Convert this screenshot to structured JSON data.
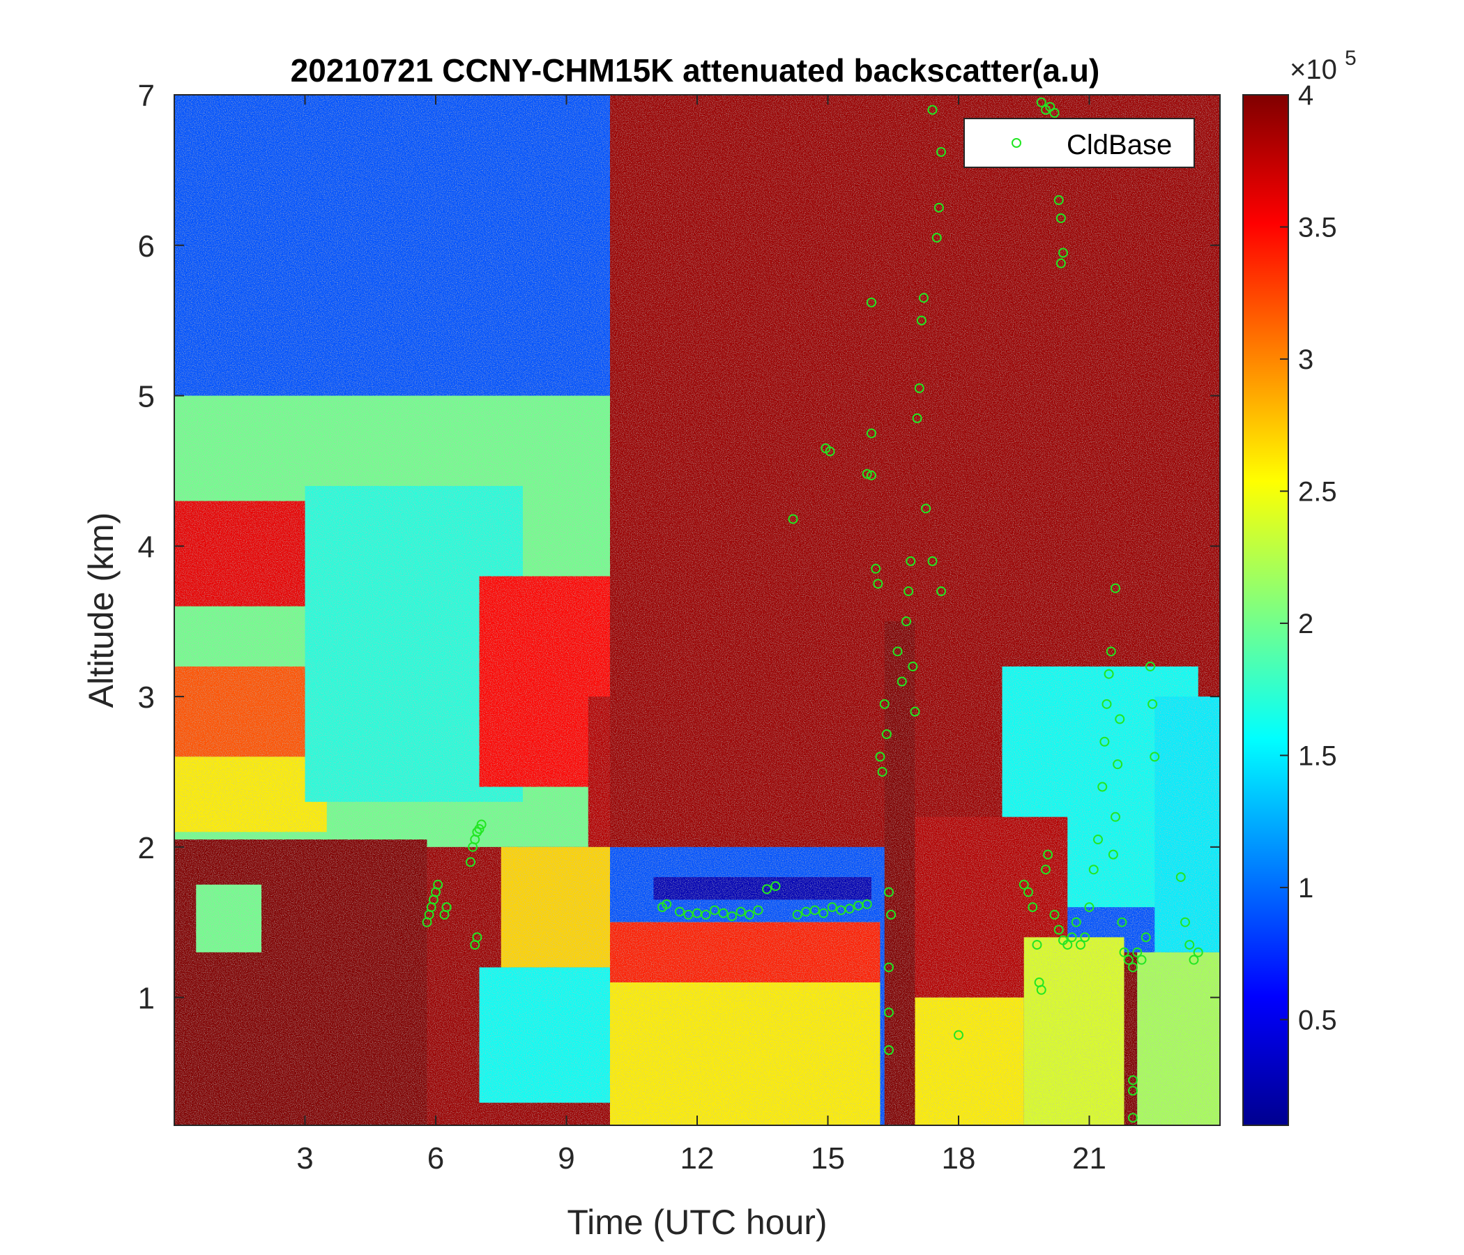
{
  "chart_data": {
    "type": "heatmap",
    "title": "20210721 CCNY-CHM15K attenuated backscatter(a.u)",
    "xlabel": "Time (UTC hour)",
    "ylabel": "Altitude (km)",
    "xlim": [
      0,
      24
    ],
    "ylim": [
      0.15,
      7
    ],
    "xticks": [
      3,
      6,
      9,
      12,
      15,
      18,
      21
    ],
    "yticks": [
      1,
      2,
      3,
      4,
      5,
      6,
      7
    ],
    "colorbar": {
      "colormap": "jet",
      "clim": [
        0.1,
        4
      ],
      "ticks": [
        0.5,
        1,
        1.5,
        2,
        2.5,
        3,
        3.5,
        4
      ],
      "multiplier_base": "×10",
      "multiplier_exponent": "5"
    },
    "legend": {
      "location": "top-right",
      "entries": [
        "CldBase"
      ]
    },
    "series": [
      {
        "name": "CldBase",
        "marker": "open-circle",
        "color": "#22e622",
        "points": [
          [
            5.8,
            1.5
          ],
          [
            5.85,
            1.55
          ],
          [
            5.9,
            1.6
          ],
          [
            5.95,
            1.65
          ],
          [
            6.0,
            1.7
          ],
          [
            6.05,
            1.75
          ],
          [
            6.2,
            1.55
          ],
          [
            6.25,
            1.6
          ],
          [
            6.8,
            1.9
          ],
          [
            6.85,
            2.0
          ],
          [
            6.9,
            2.05
          ],
          [
            6.95,
            2.1
          ],
          [
            7.0,
            2.12
          ],
          [
            7.05,
            2.15
          ],
          [
            6.9,
            1.35
          ],
          [
            6.95,
            1.4
          ],
          [
            11.2,
            1.6
          ],
          [
            11.3,
            1.62
          ],
          [
            11.6,
            1.57
          ],
          [
            11.8,
            1.55
          ],
          [
            12.0,
            1.56
          ],
          [
            12.2,
            1.55
          ],
          [
            12.4,
            1.58
          ],
          [
            12.6,
            1.56
          ],
          [
            12.8,
            1.54
          ],
          [
            13.0,
            1.57
          ],
          [
            13.2,
            1.55
          ],
          [
            13.4,
            1.58
          ],
          [
            13.6,
            1.72
          ],
          [
            13.8,
            1.74
          ],
          [
            14.3,
            1.55
          ],
          [
            14.5,
            1.57
          ],
          [
            14.7,
            1.58
          ],
          [
            14.9,
            1.56
          ],
          [
            15.1,
            1.6
          ],
          [
            15.3,
            1.58
          ],
          [
            15.5,
            1.59
          ],
          [
            15.7,
            1.61
          ],
          [
            15.9,
            1.62
          ],
          [
            14.2,
            4.18
          ],
          [
            14.95,
            4.65
          ],
          [
            15.05,
            4.63
          ],
          [
            15.9,
            4.48
          ],
          [
            16.0,
            4.47
          ],
          [
            16.0,
            4.75
          ],
          [
            16.0,
            5.62
          ],
          [
            16.1,
            3.85
          ],
          [
            16.15,
            3.75
          ],
          [
            16.2,
            2.6
          ],
          [
            16.25,
            2.5
          ],
          [
            16.3,
            2.95
          ],
          [
            16.35,
            2.75
          ],
          [
            16.4,
            1.7
          ],
          [
            16.45,
            1.55
          ],
          [
            16.4,
            1.2
          ],
          [
            16.4,
            0.9
          ],
          [
            16.4,
            0.65
          ],
          [
            16.6,
            3.3
          ],
          [
            16.7,
            3.1
          ],
          [
            16.8,
            3.5
          ],
          [
            16.85,
            3.7
          ],
          [
            16.9,
            3.9
          ],
          [
            16.95,
            3.2
          ],
          [
            17.0,
            2.9
          ],
          [
            17.05,
            4.85
          ],
          [
            17.1,
            5.05
          ],
          [
            17.15,
            5.5
          ],
          [
            17.2,
            5.65
          ],
          [
            17.25,
            4.25
          ],
          [
            17.4,
            3.9
          ],
          [
            17.4,
            6.9
          ],
          [
            17.5,
            6.05
          ],
          [
            17.55,
            6.25
          ],
          [
            17.6,
            6.62
          ],
          [
            17.6,
            3.7
          ],
          [
            18.0,
            0.75
          ],
          [
            19.5,
            1.75
          ],
          [
            19.6,
            1.7
          ],
          [
            19.7,
            1.6
          ],
          [
            19.8,
            1.35
          ],
          [
            19.85,
            1.1
          ],
          [
            19.9,
            1.05
          ],
          [
            20.0,
            1.85
          ],
          [
            20.05,
            1.95
          ],
          [
            19.9,
            6.95
          ],
          [
            20.0,
            6.9
          ],
          [
            20.1,
            6.92
          ],
          [
            20.2,
            6.88
          ],
          [
            20.3,
            6.3
          ],
          [
            20.35,
            6.18
          ],
          [
            20.4,
            5.95
          ],
          [
            20.35,
            5.88
          ],
          [
            20.2,
            1.55
          ],
          [
            20.3,
            1.45
          ],
          [
            20.4,
            1.38
          ],
          [
            20.5,
            1.35
          ],
          [
            20.6,
            1.4
          ],
          [
            20.7,
            1.5
          ],
          [
            20.8,
            1.35
          ],
          [
            20.9,
            1.4
          ],
          [
            21.0,
            1.6
          ],
          [
            21.1,
            1.85
          ],
          [
            21.2,
            2.05
          ],
          [
            21.3,
            2.4
          ],
          [
            21.35,
            2.7
          ],
          [
            21.4,
            2.95
          ],
          [
            21.45,
            3.15
          ],
          [
            21.5,
            3.3
          ],
          [
            21.6,
            3.72
          ],
          [
            21.55,
            1.95
          ],
          [
            21.6,
            2.2
          ],
          [
            21.65,
            2.55
          ],
          [
            21.7,
            2.85
          ],
          [
            21.75,
            1.5
          ],
          [
            21.8,
            1.3
          ],
          [
            21.9,
            1.25
          ],
          [
            22.0,
            1.2
          ],
          [
            22.0,
            0.45
          ],
          [
            22.0,
            0.38
          ],
          [
            22.0,
            0.2
          ],
          [
            22.1,
            1.3
          ],
          [
            22.2,
            1.25
          ],
          [
            22.3,
            1.4
          ],
          [
            22.4,
            3.2
          ],
          [
            22.45,
            2.95
          ],
          [
            22.5,
            2.6
          ],
          [
            23.1,
            1.8
          ],
          [
            23.2,
            1.5
          ],
          [
            23.3,
            1.35
          ],
          [
            23.4,
            1.25
          ],
          [
            23.5,
            1.3
          ]
        ]
      }
    ],
    "field_regions": [
      {
        "x": [
          0,
          24
        ],
        "y": [
          0.15,
          7
        ],
        "value": 0.9
      },
      {
        "x": [
          0,
          10
        ],
        "y": [
          0.15,
          5.0
        ],
        "value": 2.0
      },
      {
        "x": [
          0,
          3
        ],
        "y": [
          3.6,
          4.3
        ],
        "value": 3.6
      },
      {
        "x": [
          0,
          3
        ],
        "y": [
          2.6,
          3.2
        ],
        "value": 3.2
      },
      {
        "x": [
          0,
          3.5
        ],
        "y": [
          2.1,
          2.6
        ],
        "value": 2.6
      },
      {
        "x": [
          3,
          8
        ],
        "y": [
          2.3,
          4.4
        ],
        "value": 1.7
      },
      {
        "x": [
          7,
          10
        ],
        "y": [
          2.4,
          3.8
        ],
        "value": 3.5
      },
      {
        "x": [
          9.5,
          11
        ],
        "y": [
          2.0,
          3.0
        ],
        "value": 3.8
      },
      {
        "x": [
          10,
          24
        ],
        "y": [
          2.0,
          7.0
        ],
        "value": 3.9
      },
      {
        "x": [
          11,
          16
        ],
        "y": [
          1.65,
          1.8
        ],
        "value": 0.3
      },
      {
        "x": [
          19,
          23.5
        ],
        "y": [
          1.6,
          3.2
        ],
        "value": 1.6
      },
      {
        "x": [
          22.5,
          24
        ],
        "y": [
          1.3,
          3.0
        ],
        "value": 1.5
      },
      {
        "x": [
          0,
          5.8
        ],
        "y": [
          0.15,
          2.05
        ],
        "value": 4.0
      },
      {
        "x": [
          0.5,
          2.0
        ],
        "y": [
          1.3,
          1.75
        ],
        "value": 2.0
      },
      {
        "x": [
          5.8,
          10
        ],
        "y": [
          0.15,
          2.0
        ],
        "value": 3.9
      },
      {
        "x": [
          7.5,
          10
        ],
        "y": [
          1.2,
          2.0
        ],
        "value": 2.7
      },
      {
        "x": [
          7.0,
          10.5
        ],
        "y": [
          0.3,
          1.2
        ],
        "value": 1.6
      },
      {
        "x": [
          10,
          16.2
        ],
        "y": [
          0.15,
          1.5
        ],
        "value": 2.6
      },
      {
        "x": [
          10,
          16.2
        ],
        "y": [
          1.1,
          1.5
        ],
        "value": 3.4
      },
      {
        "x": [
          16.3,
          17.0
        ],
        "y": [
          0.15,
          3.5
        ],
        "value": 4.0
      },
      {
        "x": [
          17,
          19.5
        ],
        "y": [
          0.15,
          1.0
        ],
        "value": 2.6
      },
      {
        "x": [
          17,
          20.5
        ],
        "y": [
          1.0,
          2.2
        ],
        "value": 3.8
      },
      {
        "x": [
          19.5,
          21.8
        ],
        "y": [
          0.15,
          1.4
        ],
        "value": 2.4
      },
      {
        "x": [
          21.8,
          22.1
        ],
        "y": [
          0.15,
          1.3
        ],
        "value": 4.0
      },
      {
        "x": [
          22.1,
          24
        ],
        "y": [
          0.15,
          1.3
        ],
        "value": 2.2
      }
    ]
  }
}
